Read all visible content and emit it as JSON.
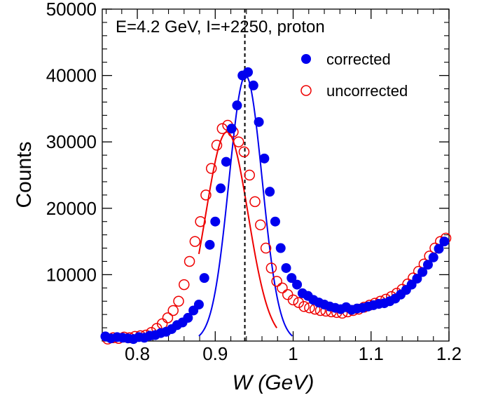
{
  "chart_data": {
    "type": "scatter",
    "title": "E=4.2 GeV, I=+2250, proton",
    "xlabel": "W (GeV)",
    "ylabel": "Counts",
    "xlim": [
      0.755,
      1.2
    ],
    "ylim": [
      0,
      50000
    ],
    "x_ticks": [
      0.8,
      0.9,
      1,
      1.1,
      1.2
    ],
    "x_tick_labels": [
      "0.8",
      "0.9",
      "1",
      "1.1",
      "1.2"
    ],
    "y_ticks": [
      10000,
      20000,
      30000,
      40000,
      50000
    ],
    "y_tick_labels": [
      "10000",
      "20000",
      "30000",
      "40000",
      "50000"
    ],
    "grid": false,
    "legend": "top-right",
    "reference_line": {
      "x": 0.938,
      "style": "dashed"
    },
    "series": [
      {
        "name": "corrected",
        "marker": "filled-circle",
        "color": "#0000ee",
        "x": [
          0.759,
          0.766,
          0.774,
          0.781,
          0.788,
          0.795,
          0.802,
          0.809,
          0.816,
          0.823,
          0.83,
          0.837,
          0.844,
          0.851,
          0.858,
          0.865,
          0.872,
          0.879,
          0.886,
          0.893,
          0.9,
          0.907,
          0.914,
          0.921,
          0.928,
          0.935,
          0.942,
          0.949,
          0.956,
          0.963,
          0.97,
          0.977,
          0.984,
          0.991,
          0.998,
          1.005,
          1.012,
          1.019,
          1.026,
          1.033,
          1.04,
          1.047,
          1.054,
          1.061,
          1.068,
          1.075,
          1.082,
          1.089,
          1.096,
          1.103,
          1.11,
          1.117,
          1.124,
          1.131,
          1.138,
          1.145,
          1.152,
          1.159,
          1.166,
          1.173,
          1.18,
          1.187,
          1.194
        ],
        "y": [
          700,
          400,
          600,
          500,
          400,
          300,
          600,
          500,
          800,
          900,
          1200,
          1400,
          1800,
          2400,
          2800,
          3500,
          4600,
          5500,
          9500,
          14500,
          18000,
          23000,
          27000,
          32000,
          35500,
          40000,
          40500,
          38500,
          33000,
          27500,
          22500,
          18000,
          14000,
          11000,
          9500,
          8500,
          7200,
          6800,
          6200,
          5800,
          5500,
          5200,
          5000,
          4800,
          5100,
          4700,
          4900,
          5000,
          5200,
          5400,
          5600,
          5700,
          6000,
          6400,
          7000,
          7700,
          8500,
          9400,
          10400,
          11500,
          12600,
          13900,
          15000
        ]
      },
      {
        "name": "uncorrected",
        "marker": "open-circle",
        "color": "#ee0000",
        "x": [
          0.762,
          0.769,
          0.776,
          0.783,
          0.79,
          0.797,
          0.804,
          0.811,
          0.818,
          0.825,
          0.832,
          0.839,
          0.846,
          0.853,
          0.86,
          0.867,
          0.874,
          0.881,
          0.888,
          0.895,
          0.902,
          0.909,
          0.916,
          0.923,
          0.93,
          0.937,
          0.944,
          0.951,
          0.958,
          0.965,
          0.972,
          0.979,
          0.986,
          0.993,
          1.0,
          1.007,
          1.014,
          1.021,
          1.028,
          1.035,
          1.042,
          1.049,
          1.056,
          1.063,
          1.07,
          1.077,
          1.084,
          1.091,
          1.098,
          1.105,
          1.112,
          1.119,
          1.126,
          1.133,
          1.14,
          1.147,
          1.154,
          1.161,
          1.168,
          1.175,
          1.182,
          1.189,
          1.196
        ],
        "y": [
          300,
          500,
          400,
          600,
          500,
          700,
          800,
          900,
          1300,
          1900,
          2600,
          3500,
          4600,
          6000,
          8500,
          12000,
          15000,
          18000,
          22000,
          26000,
          29500,
          32000,
          32500,
          31500,
          30000,
          28500,
          25000,
          21000,
          17500,
          14000,
          11000,
          9000,
          8000,
          7000,
          6200,
          5800,
          5200,
          5000,
          4800,
          4600,
          4500,
          4400,
          4300,
          4200,
          4400,
          4600,
          4800,
          5100,
          5400,
          5700,
          6000,
          6300,
          6700,
          7200,
          7800,
          8600,
          9500,
          10500,
          11600,
          12800,
          14000,
          15000,
          15500
        ]
      }
    ],
    "fit_curves": [
      {
        "series": "corrected",
        "function": "gaussian",
        "peak": 40000,
        "center": 0.939,
        "sigma": 0.0213,
        "x_range": [
          0.879,
          0.999
        ],
        "color": "#0000ee"
      },
      {
        "series": "uncorrected",
        "function": "gaussian",
        "peak": 31500,
        "center": 0.915,
        "sigma": 0.0272,
        "x_range": [
          0.879,
          0.979
        ],
        "color": "#ee0000"
      }
    ]
  }
}
